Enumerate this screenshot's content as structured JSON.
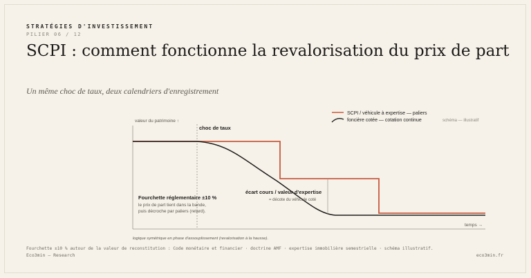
{
  "header": {
    "series": "STRATÉGIES D'INVESTISSEMENT",
    "pillar": "PILIER 06 / 12",
    "title": "SCPI : comment fonctionne la revalorisation du prix de part",
    "subtitle": "Un même choc de taux, deux calendriers d'enregistrement"
  },
  "diagram": {
    "y_axis_label": "valeur du patrimoine ↑",
    "x_axis_label": "temps →",
    "shock_label": "choc de taux",
    "illustrative_tag": "schéma — illustratif",
    "legend": {
      "scpi": "SCPI / véhicule à expertise — paliers",
      "listed": "foncière cotée — cotation continue"
    },
    "band_note": {
      "title": "Fourchette réglementaire ±10 %",
      "line1": "le prix de part tient dans la bande,",
      "line2": "puis décroche par paliers (retard)."
    },
    "gap_note": {
      "title": "écart cours / valeur d'expertise",
      "detail": "= décote du véhicule coté"
    },
    "symmetry_note": "logique symétrique en phase d'assouplissement (revalorisation à la hausse).",
    "colors": {
      "scpi_line": "#c65a3e",
      "listed_line": "#1f1d1a",
      "axis": "#9a948a",
      "shock_line": "#8c867c"
    }
  },
  "footer": {
    "sources": "Fourchette ±10 % autour de la valeur de reconstitution : Code monétaire et financier · doctrine AMF · expertise immobilière semestrielle · schéma illustratif.",
    "brand": "Eco3min — Research",
    "site": "eco3min.fr"
  }
}
